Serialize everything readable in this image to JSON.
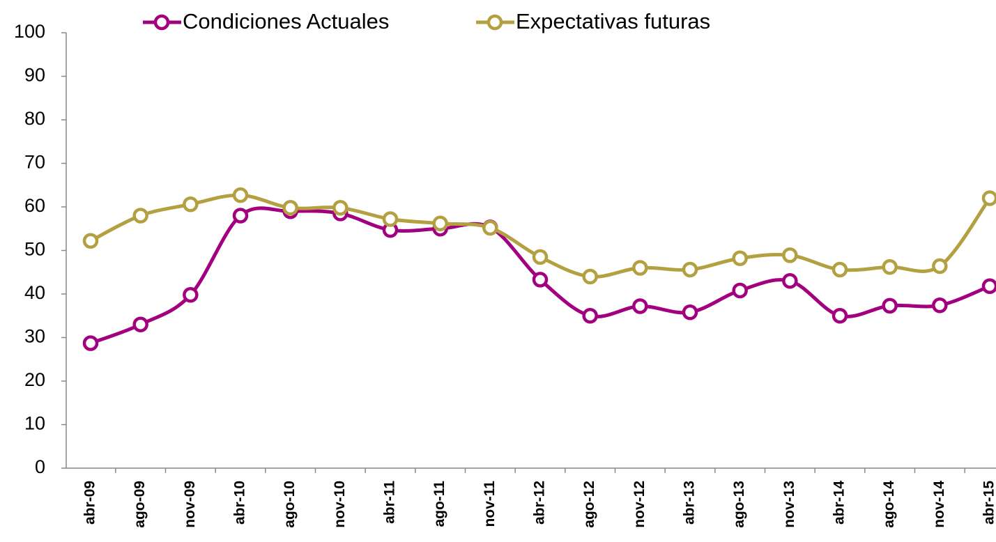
{
  "chart_data": {
    "type": "line",
    "categories": [
      "abr-09",
      "ago-09",
      "nov-09",
      "abr-10",
      "ago-10",
      "nov-10",
      "abr-11",
      "ago-11",
      "nov-11",
      "abr-12",
      "ago-12",
      "nov-12",
      "abr-13",
      "ago-13",
      "nov-13",
      "abr-14",
      "ago-14",
      "nov-14",
      "abr-15"
    ],
    "series": [
      {
        "name": "Condiciones Actuales",
        "color": "#a3007f",
        "values": [
          28.7,
          33,
          39.8,
          58,
          59,
          58.5,
          54.7,
          55,
          55.3,
          43.3,
          35,
          37.2,
          35.8,
          40.8,
          43,
          35,
          37.3,
          37.4,
          41.8
        ]
      },
      {
        "name": "Expectativas futuras",
        "color": "#b3a040",
        "values": [
          52.2,
          58,
          60.6,
          62.7,
          59.8,
          59.8,
          57.2,
          56.2,
          55.2,
          48.5,
          44,
          46,
          45.6,
          48.2,
          48.9,
          45.6,
          46.2,
          46.4,
          62
        ]
      }
    ],
    "ylim": [
      0,
      100
    ],
    "yticks": [
      0,
      10,
      20,
      30,
      40,
      50,
      60,
      70,
      80,
      90,
      100
    ],
    "smooth": true
  }
}
